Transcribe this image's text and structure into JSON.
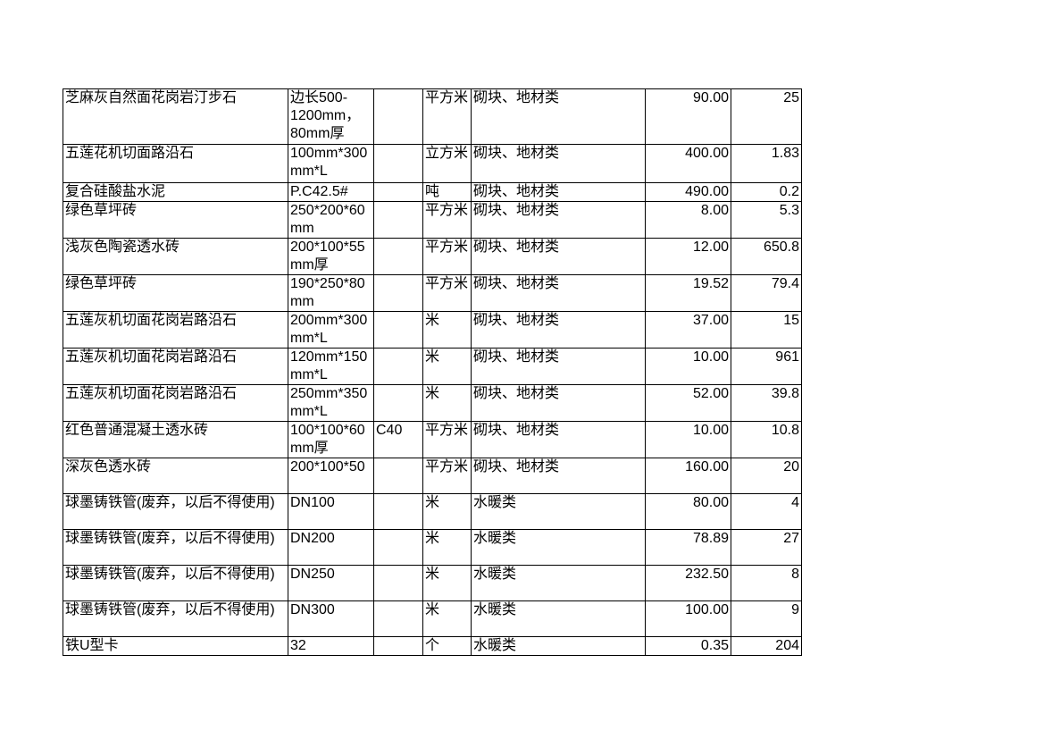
{
  "document": {
    "background_color": "#ffffff",
    "text_color": "#000000",
    "table_border_color": "#000000"
  },
  "table": {
    "field_order": [
      "name",
      "spec",
      "grade",
      "unit",
      "category",
      "price",
      "quantity"
    ],
    "rows": [
      {
        "name": "芝麻灰自然面花岗岩汀步石",
        "spec": "边长500-1200mm，80mm厚",
        "grade": "",
        "unit": "平方米",
        "category": "砌块、地材类",
        "price": "90.00",
        "quantity": "25"
      },
      {
        "name": "五莲花机切面路沿石",
        "spec": "100mm*300mm*L",
        "grade": "",
        "unit": "立方米",
        "category": "砌块、地材类",
        "price": "400.00",
        "quantity": "1.83"
      },
      {
        "name": "复合硅酸盐水泥",
        "spec": "P.C42.5#",
        "grade": "",
        "unit": "吨",
        "category": "砌块、地材类",
        "price": "490.00",
        "quantity": "0.2"
      },
      {
        "name": "绿色草坪砖",
        "spec": "250*200*60mm",
        "grade": "",
        "unit": "平方米",
        "category": "砌块、地材类",
        "price": "8.00",
        "quantity": "5.3"
      },
      {
        "name": "浅灰色陶瓷透水砖",
        "spec": "200*100*55mm厚",
        "grade": "",
        "unit": "平方米",
        "category": "砌块、地材类",
        "price": "12.00",
        "quantity": "650.8"
      },
      {
        "name": "绿色草坪砖",
        "spec": "190*250*80mm",
        "grade": "",
        "unit": "平方米",
        "category": "砌块、地材类",
        "price": "19.52",
        "quantity": "79.4"
      },
      {
        "name": "五莲灰机切面花岗岩路沿石",
        "spec": "200mm*300mm*L",
        "grade": "",
        "unit": "米",
        "category": "砌块、地材类",
        "price": "37.00",
        "quantity": "15"
      },
      {
        "name": "五莲灰机切面花岗岩路沿石",
        "spec": "120mm*150mm*L",
        "grade": "",
        "unit": "米",
        "category": "砌块、地材类",
        "price": "10.00",
        "quantity": "961"
      },
      {
        "name": "五莲灰机切面花岗岩路沿石",
        "spec": "250mm*350mm*L",
        "grade": "",
        "unit": "米",
        "category": "砌块、地材类",
        "price": "52.00",
        "quantity": "39.8"
      },
      {
        "name": "红色普通混凝土透水砖",
        "spec": "100*100*60mm厚",
        "grade": "C40",
        "unit": "平方米",
        "category": "砌块、地材类",
        "price": "10.00",
        "quantity": "10.8"
      },
      {
        "name": "深灰色透水砖",
        "spec": "200*100*50",
        "grade": "",
        "unit": "平方米",
        "category": "砌块、地材类",
        "price": "160.00",
        "quantity": "20"
      },
      {
        "name": "球墨铸铁管(废弃，以后不得使用)",
        "spec": "DN100",
        "grade": "",
        "unit": "米",
        "category": "水暖类",
        "price": "80.00",
        "quantity": "4"
      },
      {
        "name": "球墨铸铁管(废弃，以后不得使用)",
        "spec": "DN200",
        "grade": "",
        "unit": "米",
        "category": "水暖类",
        "price": "78.89",
        "quantity": "27"
      },
      {
        "name": "球墨铸铁管(废弃，以后不得使用)",
        "spec": "DN250",
        "grade": "",
        "unit": "米",
        "category": "水暖类",
        "price": "232.50",
        "quantity": "8"
      },
      {
        "name": "球墨铸铁管(废弃，以后不得使用)",
        "spec": "DN300",
        "grade": "",
        "unit": "米",
        "category": "水暖类",
        "price": "100.00",
        "quantity": "9"
      },
      {
        "name": "铁U型卡",
        "spec": "32",
        "grade": "",
        "unit": "个",
        "category": "水暖类",
        "price": "0.35",
        "quantity": "204"
      }
    ]
  }
}
